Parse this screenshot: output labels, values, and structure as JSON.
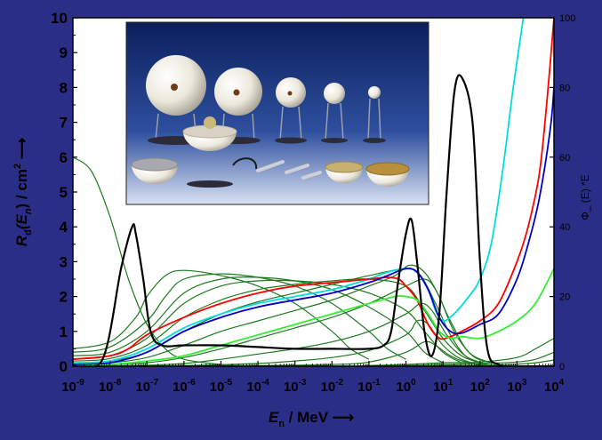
{
  "chart_data": {
    "type": "line",
    "xlabel": {
      "var": "E",
      "sub": "n",
      "unit": " / MeV ⟶"
    },
    "ylabel": {
      "var": "R",
      "sub": "d",
      "arg": "(E",
      "arg_sub": "n",
      "unit": ") / cm",
      "unit_sup": "2",
      "arrow": " ⟶"
    },
    "y2label": "Φ_ (E) *E",
    "x_scale": "log",
    "xlim": [
      1e-09,
      10000.0
    ],
    "ylim": [
      0,
      10
    ],
    "y2lim": [
      0,
      100
    ],
    "xticks": [
      {
        "base": "10",
        "exp": "-9"
      },
      {
        "base": "10",
        "exp": "-8"
      },
      {
        "base": "10",
        "exp": "-7"
      },
      {
        "base": "10",
        "exp": "-6"
      },
      {
        "base": "10",
        "exp": "-5"
      },
      {
        "base": "10",
        "exp": "-4"
      },
      {
        "base": "10",
        "exp": "-3"
      },
      {
        "base": "10",
        "exp": "-2"
      },
      {
        "base": "10",
        "exp": "-1"
      },
      {
        "base": "10",
        "exp": "0"
      },
      {
        "base": "10",
        "exp": "1"
      },
      {
        "base": "10",
        "exp": "2"
      },
      {
        "base": "10",
        "exp": "3"
      },
      {
        "base": "10",
        "exp": "4"
      }
    ],
    "yticks": [
      "0",
      "1",
      "2",
      "3",
      "4",
      "5",
      "6",
      "7",
      "8",
      "9",
      "10"
    ],
    "y2ticks": [
      "0",
      "20",
      "40",
      "60",
      "80",
      "100"
    ],
    "inset": "photograph of Bonner sphere spectrometer (polyethylene spheres of different diameters on stands)",
    "series": [
      {
        "color": "#000000",
        "axis": "right",
        "style": "bold",
        "x": [
          -9,
          -8.2,
          -7.7,
          -7.4,
          -7.3,
          -7.1,
          -6.9,
          -6.6,
          -6,
          -5,
          -4,
          -3,
          -2,
          -1,
          -0.6,
          -0.4,
          -0.2,
          0,
          0.15,
          0.3,
          0.5,
          0.7,
          0.9,
          1.1,
          1.3,
          1.5,
          1.8,
          2,
          2.2,
          2.5,
          3,
          4
        ],
        "y": [
          0,
          2,
          28,
          40,
          38,
          25,
          10,
          6,
          6,
          6,
          5.5,
          5,
          5,
          5,
          6,
          10,
          25,
          38,
          42,
          30,
          10,
          3,
          15,
          50,
          78,
          83,
          70,
          30,
          5,
          0.5,
          0,
          0
        ]
      },
      {
        "color": "#00dddd",
        "axis": "left",
        "x": [
          -9,
          -8,
          -7,
          -6,
          -5,
          -4,
          -3,
          -2,
          -1,
          -0.5,
          0,
          0.3,
          0.6,
          0.8,
          1,
          1.3,
          1.7,
          2,
          2.3,
          2.6,
          2.9,
          3.2
        ],
        "y": [
          0.1,
          0.15,
          0.5,
          1.1,
          1.5,
          1.8,
          2.0,
          2.2,
          2.5,
          2.7,
          2.8,
          2.7,
          2.2,
          1.6,
          1.3,
          1.5,
          2.0,
          2.5,
          3.5,
          5.5,
          8.0,
          10.2
        ]
      },
      {
        "color": "#ff0000",
        "axis": "left",
        "x": [
          -9,
          -8,
          -7.5,
          -7,
          -6,
          -5,
          -4,
          -3,
          -2,
          -1,
          -0.5,
          -0.2,
          0,
          0.3,
          0.6,
          0.9,
          1.2,
          1.5,
          2,
          2.5,
          3,
          3.3,
          3.6,
          3.8,
          4
        ],
        "y": [
          0.2,
          0.3,
          0.5,
          0.9,
          1.4,
          1.8,
          2.1,
          2.3,
          2.4,
          2.5,
          2.55,
          2.5,
          2.3,
          1.9,
          1.2,
          0.8,
          0.85,
          1.0,
          1.3,
          1.8,
          3.0,
          4.0,
          5.5,
          7.5,
          10
        ]
      },
      {
        "color": "#0000cc",
        "axis": "left",
        "x": [
          -9,
          -8,
          -7,
          -6,
          -5,
          -4,
          -3,
          -2,
          -1,
          -0.5,
          0,
          0.3,
          0.6,
          0.9,
          1.2,
          1.5,
          2,
          2.5,
          3,
          3.3,
          3.6,
          3.9,
          4
        ],
        "y": [
          0.05,
          0.1,
          0.4,
          1.0,
          1.4,
          1.7,
          1.9,
          2.1,
          2.4,
          2.6,
          2.8,
          2.7,
          2.2,
          1.4,
          1.0,
          0.95,
          1.2,
          1.5,
          2.5,
          3.5,
          4.8,
          6.8,
          8.0
        ]
      },
      {
        "color": "#33ee33",
        "axis": "left",
        "x": [
          -9,
          -8,
          -7,
          -6,
          -5,
          -4,
          -3,
          -2,
          -1,
          -0.3,
          0,
          0.3,
          0.6,
          0.9,
          1.2,
          1.5,
          2,
          2.5,
          3,
          3.5,
          4
        ],
        "y": [
          0,
          0.05,
          0.15,
          0.3,
          0.6,
          0.9,
          1.2,
          1.5,
          1.8,
          2.0,
          2.0,
          1.9,
          1.5,
          1.0,
          0.8,
          0.85,
          0.8,
          1.0,
          1.3,
          1.8,
          2.8
        ]
      },
      {
        "color": "#1e7a1e",
        "axis": "left",
        "x": [
          -9,
          -8.5,
          -8,
          -7.5,
          -7,
          -6.5,
          -6,
          -5,
          -4
        ],
        "y": [
          6.0,
          5.6,
          4.3,
          2.5,
          1.2,
          0.5,
          0.2,
          0.05,
          0
        ]
      },
      {
        "color": "#1e7a1e",
        "axis": "left",
        "x": [
          -9,
          -8,
          -7.3,
          -7,
          -6.5,
          -6,
          -5,
          -4,
          -3,
          -2,
          -1.5,
          -1
        ],
        "y": [
          0.5,
          0.7,
          1.4,
          2.0,
          2.6,
          2.75,
          2.6,
          2.3,
          1.8,
          1.0,
          0.5,
          0.2
        ]
      },
      {
        "color": "#1e7a1e",
        "axis": "left",
        "x": [
          -9,
          -8,
          -7,
          -6.5,
          -6,
          -5,
          -4,
          -3,
          -2,
          -1,
          -0.5,
          0
        ],
        "y": [
          0.4,
          0.55,
          1.3,
          2.0,
          2.5,
          2.65,
          2.55,
          2.3,
          1.8,
          1.0,
          0.5,
          0.2
        ]
      },
      {
        "color": "#1e7a1e",
        "axis": "left",
        "x": [
          -9,
          -8,
          -7,
          -6,
          -5,
          -4,
          -3,
          -2,
          -1,
          0,
          0.5,
          1
        ],
        "y": [
          0.3,
          0.4,
          1.0,
          2.1,
          2.5,
          2.55,
          2.45,
          2.2,
          1.7,
          1.0,
          0.4,
          0.1
        ]
      },
      {
        "color": "#1e7a1e",
        "axis": "left",
        "x": [
          -9,
          -8,
          -7,
          -6,
          -5,
          -4,
          -3,
          -2,
          -1,
          0,
          0.5,
          1,
          1.5
        ],
        "y": [
          0.2,
          0.3,
          0.8,
          1.8,
          2.3,
          2.45,
          2.45,
          2.35,
          2.1,
          1.6,
          1.0,
          0.4,
          0.1
        ]
      },
      {
        "color": "#1e7a1e",
        "axis": "left",
        "x": [
          -9,
          -8,
          -7,
          -6,
          -5,
          -4,
          -3,
          -2,
          -1,
          0,
          0.5,
          1,
          1.5,
          2
        ],
        "y": [
          0.15,
          0.22,
          0.6,
          1.4,
          1.9,
          2.2,
          2.35,
          2.45,
          2.5,
          2.3,
          1.6,
          0.8,
          0.3,
          0.1
        ]
      },
      {
        "color": "#1e7a1e",
        "axis": "left",
        "x": [
          -9,
          -8,
          -7,
          -6,
          -5,
          -4,
          -3,
          -2,
          -1,
          0,
          0.4,
          0.8,
          1.2,
          1.6,
          2
        ],
        "y": [
          0.1,
          0.15,
          0.4,
          1.0,
          1.5,
          1.85,
          2.1,
          2.35,
          2.6,
          2.8,
          2.6,
          1.8,
          0.9,
          0.3,
          0.1
        ]
      },
      {
        "color": "#1e7a1e",
        "axis": "left",
        "x": [
          -9,
          -8,
          -7,
          -6,
          -5,
          -4,
          -3,
          -2,
          -1,
          -0.3,
          0.1,
          0.5,
          0.9,
          1.3,
          1.8,
          2.3
        ],
        "y": [
          0.08,
          0.1,
          0.25,
          0.6,
          1.0,
          1.3,
          1.6,
          1.9,
          2.3,
          2.6,
          2.9,
          2.7,
          2.0,
          1.0,
          0.3,
          0.1
        ]
      },
      {
        "color": "#1e7a1e",
        "axis": "left",
        "x": [
          -9,
          -8,
          -7,
          -6,
          -5,
          -4,
          -3,
          -2,
          -1,
          0,
          0.5,
          0.8,
          1.2,
          1.7,
          2.3
        ],
        "y": [
          0.05,
          0.06,
          0.1,
          0.25,
          0.5,
          0.8,
          1.1,
          1.4,
          1.8,
          2.3,
          2.5,
          2.2,
          1.3,
          0.4,
          0.1
        ]
      },
      {
        "color": "#1e7a1e",
        "axis": "left",
        "x": [
          -9,
          -7,
          -6,
          -5,
          -4,
          -3,
          -2,
          -1,
          0,
          0.4,
          0.7,
          1.1,
          1.6,
          2.2
        ],
        "y": [
          0.02,
          0.03,
          0.08,
          0.2,
          0.35,
          0.5,
          0.7,
          1.0,
          1.5,
          1.8,
          1.6,
          0.9,
          0.3,
          0.05
        ]
      },
      {
        "color": "#1e7a1e",
        "axis": "left",
        "x": [
          -9,
          -6,
          -4,
          -3,
          -2,
          -1,
          0,
          0.3,
          0.6,
          1.0,
          1.5,
          2.1
        ],
        "y": [
          0,
          0.02,
          0.08,
          0.15,
          0.25,
          0.45,
          0.9,
          1.3,
          1.2,
          0.6,
          0.2,
          0.02
        ]
      },
      {
        "color": "#1e7a1e",
        "axis": "left",
        "x": [
          -9,
          -4,
          -2,
          -1,
          0,
          0.5,
          0.8,
          1.2,
          1.7,
          2.5
        ],
        "y": [
          0,
          0.02,
          0.05,
          0.12,
          0.4,
          0.7,
          0.6,
          0.3,
          0.1,
          0.02
        ]
      },
      {
        "color": "#1e7a1e",
        "axis": "left",
        "x": [
          -9,
          -2,
          -1,
          0,
          1,
          2,
          3,
          3.5,
          4
        ],
        "y": [
          0,
          0,
          0.02,
          0.05,
          0.1,
          0.12,
          0.25,
          0.5,
          0.8
        ]
      },
      {
        "color": "#1e7a1e",
        "axis": "left",
        "x": [
          -9,
          -1,
          0,
          1,
          2,
          3,
          3.5,
          4
        ],
        "y": [
          0,
          0,
          0.02,
          0.05,
          0.08,
          0.12,
          0.2,
          0.4
        ]
      },
      {
        "color": "#1e7a1e",
        "axis": "left",
        "x": [
          -9,
          0,
          1,
          2,
          3,
          3.5,
          4
        ],
        "y": [
          0,
          0,
          0.02,
          0.03,
          0.06,
          0.1,
          0.18
        ]
      }
    ]
  }
}
